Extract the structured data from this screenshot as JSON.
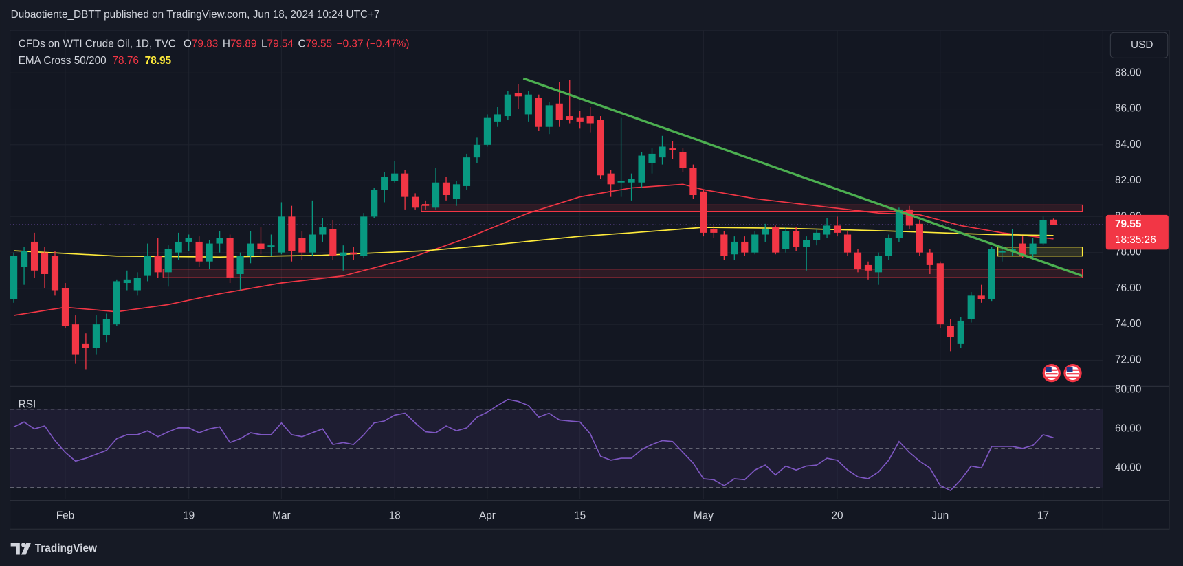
{
  "header": {
    "publisher": "Dubaotiente_DBTT published on TradingView.com, Jun 18, 2024 10:24 UTC+7"
  },
  "currency": "USD",
  "footer": {
    "brand": "TradingView"
  },
  "chart_data": [
    {
      "type": "candlestick",
      "symbol": "CFDs on WTI Crude Oil, 1D, TVC",
      "ohlc_labels": [
        "O",
        "H",
        "L",
        "C"
      ],
      "change": "−0.37 (−0.47%)",
      "countdown": "18:35:26",
      "up_color": "#089981",
      "down_color": "#f23645",
      "categories": [
        null,
        null,
        null,
        null,
        null,
        "Feb",
        null,
        null,
        null,
        null,
        null,
        null,
        null,
        null,
        null,
        null,
        null,
        "19",
        null,
        null,
        null,
        null,
        null,
        null,
        null,
        null,
        "Mar",
        null,
        null,
        null,
        null,
        null,
        null,
        null,
        null,
        null,
        null,
        "18",
        null,
        null,
        null,
        null,
        null,
        null,
        null,
        null,
        "Apr",
        null,
        null,
        null,
        null,
        null,
        null,
        null,
        null,
        "15",
        null,
        null,
        null,
        null,
        null,
        null,
        null,
        null,
        null,
        null,
        null,
        "May",
        null,
        null,
        null,
        null,
        null,
        null,
        null,
        null,
        null,
        null,
        null,
        null,
        "20",
        null,
        null,
        null,
        null,
        null,
        null,
        null,
        null,
        null,
        "Jun",
        null,
        null,
        null,
        null,
        null,
        null,
        null,
        null,
        null,
        "17",
        null
      ],
      "open": [
        75.4,
        77.2,
        78.6,
        78.0,
        77.8,
        76.0,
        74.0,
        72.9,
        72.7,
        73.4,
        74.0,
        76.3,
        75.9,
        76.7,
        77.8,
        76.9,
        78.0,
        78.6,
        78.6,
        77.5,
        78.5,
        78.8,
        76.8,
        77.8,
        78.5,
        78.3,
        78.0,
        80.0,
        78.8,
        78.0,
        79.0,
        79.3,
        77.8,
        78.0,
        77.8,
        80.0,
        81.5,
        82.0,
        82.4,
        81.1,
        80.7,
        80.5,
        81.9,
        81.0,
        81.7,
        83.3,
        84.0,
        85.3,
        85.6,
        86.9,
        85.7,
        86.6,
        85.0,
        86.3,
        85.6,
        85.5,
        85.6,
        85.4,
        82.4,
        81.9,
        81.9,
        81.9,
        83.0,
        83.3,
        83.8,
        83.6,
        82.7,
        81.4,
        79.3,
        79.0,
        77.9,
        78.6,
        78.0,
        79.0,
        79.4,
        78.2,
        79.2,
        78.3,
        78.7,
        79.0,
        79.5,
        79.0,
        78.0,
        77.3,
        76.9,
        77.8,
        78.8,
        80.4,
        79.6,
        78.0,
        77.4,
        73.9,
        72.9,
        74.3,
        75.6,
        75.4,
        78.0,
        78.1,
        78.5,
        77.9,
        78.5,
        79.83
      ],
      "high": [
        78.0,
        78.3,
        79.1,
        78.3,
        78.1,
        76.3,
        74.5,
        73.5,
        74.5,
        74.6,
        76.5,
        77.0,
        76.9,
        78.5,
        78.8,
        78.4,
        79.1,
        79.0,
        78.9,
        78.7,
        79.2,
        79.0,
        78.0,
        79.2,
        79.4,
        79.0,
        80.8,
        80.6,
        79.2,
        80.9,
        79.9,
        79.8,
        78.4,
        78.3,
        80.2,
        81.6,
        82.5,
        83.1,
        82.6,
        81.3,
        80.9,
        82.7,
        82.2,
        82.0,
        83.5,
        84.4,
        85.7,
        86.1,
        87.0,
        87.4,
        87.0,
        86.8,
        86.4,
        87.5,
        87.6,
        85.9,
        86.1,
        85.6,
        82.6,
        85.5,
        82.4,
        83.6,
        83.8,
        84.5,
        84.2,
        83.8,
        82.9,
        81.5,
        79.5,
        79.2,
        78.9,
        78.9,
        79.2,
        79.6,
        79.5,
        79.4,
        79.4,
        78.9,
        79.3,
        79.9,
        80.0,
        79.2,
        78.2,
        77.5,
        78.0,
        79.0,
        80.5,
        80.6,
        79.8,
        78.2,
        77.5,
        74.3,
        74.4,
        75.8,
        76.2,
        78.3,
        78.4,
        79.3,
        78.9,
        78.8,
        80.0,
        79.89
      ],
      "low": [
        75.2,
        76.2,
        76.6,
        76.0,
        75.6,
        73.8,
        71.8,
        71.5,
        72.3,
        73.0,
        73.9,
        75.9,
        75.6,
        76.4,
        76.6,
        76.1,
        77.6,
        78.1,
        77.2,
        77.1,
        78.0,
        76.3,
        75.9,
        77.4,
        77.9,
        77.8,
        77.9,
        77.5,
        77.6,
        77.8,
        78.6,
        77.6,
        77.0,
        77.6,
        77.7,
        79.9,
        80.8,
        81.9,
        80.4,
        80.4,
        80.4,
        80.4,
        80.9,
        80.6,
        81.5,
        83.0,
        83.9,
        85.0,
        85.4,
        86.0,
        85.3,
        84.8,
        84.6,
        85.0,
        85.2,
        84.9,
        84.7,
        82.1,
        81.1,
        81.1,
        80.9,
        81.6,
        82.4,
        82.9,
        83.2,
        82.5,
        81.0,
        78.9,
        78.8,
        77.6,
        77.6,
        77.8,
        77.9,
        78.6,
        77.9,
        78.0,
        78.1,
        77.0,
        78.4,
        78.8,
        78.9,
        77.8,
        76.9,
        76.5,
        76.2,
        77.6,
        78.6,
        79.3,
        77.8,
        76.8,
        73.8,
        72.5,
        72.7,
        74.1,
        75.2,
        75.3,
        77.5,
        77.8,
        77.7,
        77.7,
        78.4,
        79.54
      ],
      "close": [
        77.8,
        78.1,
        77.0,
        76.8,
        75.9,
        73.9,
        72.3,
        72.7,
        74.0,
        74.3,
        76.4,
        76.5,
        76.6,
        77.8,
        76.9,
        78.2,
        78.6,
        78.8,
        77.5,
        78.5,
        78.8,
        76.6,
        77.8,
        78.5,
        78.2,
        78.4,
        80.0,
        78.1,
        78.0,
        79.0,
        79.4,
        77.8,
        78.0,
        77.9,
        80.0,
        81.5,
        82.2,
        82.4,
        81.1,
        80.5,
        80.6,
        81.9,
        81.2,
        81.8,
        83.3,
        84.0,
        85.5,
        85.7,
        86.8,
        86.7,
        86.8,
        85.0,
        86.2,
        85.4,
        85.4,
        85.3,
        85.2,
        82.3,
        81.8,
        82.0,
        82.1,
        83.4,
        83.5,
        83.9,
        83.7,
        82.7,
        81.2,
        79.1,
        79.1,
        77.8,
        78.6,
        78.0,
        79.0,
        79.3,
        78.0,
        79.2,
        78.3,
        78.7,
        79.1,
        79.5,
        79.1,
        78.0,
        77.1,
        77.0,
        77.8,
        78.8,
        80.4,
        79.5,
        78.0,
        77.3,
        74.0,
        73.3,
        74.2,
        75.6,
        75.4,
        78.2,
        78.1,
        78.2,
        77.8,
        78.5,
        79.8,
        79.55
      ],
      "xlim": [
        -0.37,
        105.8
      ],
      "ylim": [
        70.57,
        90.39
      ],
      "yticks": [
        {
          "value": 88,
          "label": "88.00"
        },
        {
          "value": 86,
          "label": "86.00"
        },
        {
          "value": 84,
          "label": "84.00"
        },
        {
          "value": 82,
          "label": "82.00"
        },
        {
          "value": 80,
          "label": "80.00"
        },
        {
          "value": 78,
          "label": "78.00"
        },
        {
          "value": 76,
          "label": "76.00"
        },
        {
          "value": 74,
          "label": "74.00"
        },
        {
          "value": 72,
          "label": "72.00"
        }
      ],
      "grid": true,
      "ema": {
        "name": "EMA Cross 50/200",
        "lines": [
          {
            "color": "#f23645",
            "x": [
              0,
              5,
              10,
              15,
              20,
              26,
              32,
              38,
              44,
              50,
              55,
              60,
              65,
              67,
              72,
              78,
              84,
              88,
              92,
              96,
              101
            ],
            "values": [
              74.5,
              74.95,
              74.7,
              75.1,
              75.7,
              76.3,
              76.7,
              77.6,
              78.8,
              80.2,
              81.1,
              81.6,
              81.8,
              81.5,
              81.0,
              80.6,
              80.2,
              80.1,
              79.5,
              79.1,
              78.76
            ]
          },
          {
            "color": "#ffeb3b",
            "x": [
              0,
              10,
              20,
              30,
              40,
              46,
              55,
              60,
              67,
              75,
              85,
              90,
              95,
              101
            ],
            "values": [
              78.1,
              77.8,
              77.75,
              77.85,
              78.1,
              78.4,
              78.9,
              79.1,
              79.4,
              79.35,
              79.2,
              79.1,
              79.0,
              78.95
            ]
          }
        ]
      },
      "trendline": {
        "color": "#4caf50",
        "x": [
          49.5,
          103.8
        ],
        "y": [
          87.7,
          76.7
        ]
      },
      "zones": [
        {
          "color": "#f23645",
          "x": [
            39.6,
            103.8
          ],
          "y": [
            80.65,
            80.3
          ]
        },
        {
          "color": "#f23645",
          "x": [
            14.5,
            103.8
          ],
          "y": [
            77.08,
            76.6
          ]
        },
        {
          "color": "#ffeb3b",
          "x": [
            95.6,
            103.8
          ],
          "y": [
            78.3,
            77.8
          ]
        }
      ]
    },
    {
      "type": "line",
      "title": "RSI",
      "color": "#7e57c2",
      "values": [
        61,
        63.5,
        60,
        61.5,
        54,
        48,
        43.5,
        45,
        47,
        49,
        55,
        57,
        57,
        59,
        56,
        58.5,
        60.5,
        60.5,
        58,
        60,
        61,
        53,
        55,
        58,
        57,
        57,
        63,
        57,
        56,
        58,
        60,
        52,
        53,
        52,
        57,
        63,
        64,
        67,
        68,
        63,
        58.5,
        58,
        61.5,
        59,
        60.5,
        66,
        68.5,
        72,
        75,
        74,
        72,
        66,
        68,
        64.5,
        64,
        63.5,
        57.5,
        46,
        44,
        45,
        45,
        49.5,
        52,
        54,
        53.5,
        48,
        42.5,
        34.5,
        34,
        31,
        34.5,
        34,
        39,
        41.5,
        36.5,
        41,
        39,
        41,
        41.5,
        45,
        44,
        39,
        35.5,
        34.5,
        38,
        44,
        53.5,
        48,
        43.5,
        40,
        31,
        28.5,
        34,
        41,
        40,
        51,
        51,
        51,
        50,
        51.5,
        57,
        55.5
      ],
      "ylim": [
        24.2,
        80.8
      ],
      "yticks": [
        {
          "value": 80,
          "label": "80.00"
        },
        {
          "value": 60,
          "label": "60.00"
        },
        {
          "value": 40,
          "label": "40.00"
        }
      ],
      "levels": [
        70,
        50,
        30
      ]
    }
  ]
}
